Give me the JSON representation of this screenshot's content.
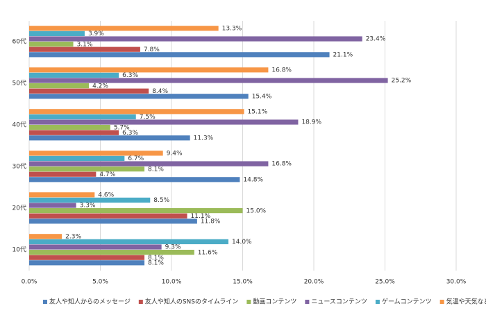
{
  "chart_data": {
    "type": "bar",
    "orientation": "horizontal",
    "categories": [
      "10代",
      "20代",
      "30代",
      "40代",
      "50代",
      "60代"
    ],
    "series": [
      {
        "name": "友人や知人からのメッセージ",
        "color": "#4f81bd",
        "values": [
          8.1,
          11.8,
          14.8,
          11.3,
          15.4,
          21.1
        ],
        "value_labels": [
          "8.1%",
          "11.8%",
          "14.8%",
          "11.3%",
          "15.4%",
          "21.1%"
        ]
      },
      {
        "name": "友人や知人のSNSのタイムライン",
        "color": "#c0504d",
        "values": [
          8.1,
          11.1,
          4.7,
          6.3,
          8.4,
          7.8
        ],
        "value_labels": [
          "8.1%",
          "11.1%",
          "4.7%",
          "6.3%",
          "8.4%",
          "7.8%"
        ]
      },
      {
        "name": "動画コンテンツ",
        "color": "#9bbb59",
        "values": [
          11.6,
          15.0,
          8.1,
          5.7,
          4.2,
          3.1
        ],
        "value_labels": [
          "11.6%",
          "15.0%",
          "8.1%",
          "5.7%",
          "4.2%",
          "3.1%"
        ]
      },
      {
        "name": "ニュースコンテンツ",
        "color": "#8064a2",
        "values": [
          9.3,
          3.3,
          16.8,
          18.9,
          25.2,
          23.4
        ],
        "value_labels": [
          "9.3%",
          "3.3%",
          "16.8%",
          "18.9%",
          "25.2%",
          "23.4%"
        ]
      },
      {
        "name": "ゲームコンテンツ",
        "color": "#4bacc6",
        "values": [
          14.0,
          8.5,
          6.7,
          7.5,
          6.3,
          3.9
        ],
        "value_labels": [
          "14.0%",
          "8.5%",
          "6.7%",
          "7.5%",
          "6.3%",
          "3.9%"
        ]
      },
      {
        "name": "気温や天気などの情報",
        "color": "#f79646",
        "values": [
          2.3,
          4.6,
          9.4,
          15.1,
          16.8,
          13.3
        ],
        "value_labels": [
          "2.3%",
          "4.6%",
          "9.4%",
          "15.1%",
          "16.8%",
          "13.3%"
        ]
      }
    ],
    "xlim": [
      0,
      30
    ],
    "xticks": [
      {
        "value": 0,
        "label": "0.0%"
      },
      {
        "value": 5,
        "label": "5.0%"
      },
      {
        "value": 10,
        "label": "10.0%"
      },
      {
        "value": 15,
        "label": "15.0%"
      },
      {
        "value": 20,
        "label": "20.0%"
      },
      {
        "value": 25,
        "label": "25.0%"
      },
      {
        "value": 30,
        "label": "30.0%"
      }
    ],
    "grid": true,
    "legend": "bottom"
  }
}
